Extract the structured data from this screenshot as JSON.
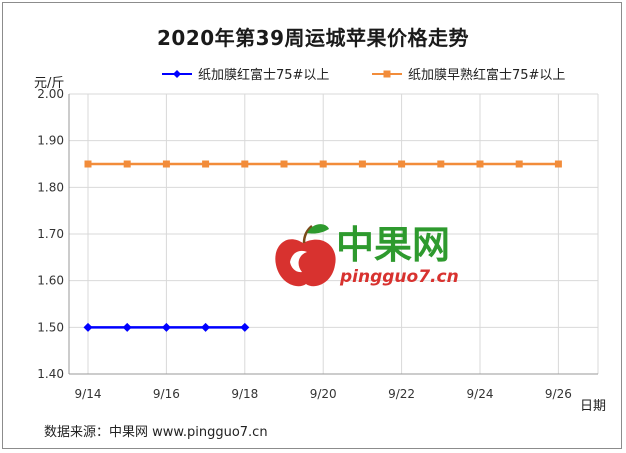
{
  "chart_data": {
    "type": "line",
    "title": "2020年第39周运城苹果价格走势",
    "ylabel": "元/斤",
    "xlabel": "日期",
    "ylim": [
      1.4,
      2.0
    ],
    "yticks": [
      "2.00",
      "1.90",
      "1.80",
      "1.70",
      "1.60",
      "1.50",
      "1.40"
    ],
    "x": [
      "9/14",
      "9/15",
      "9/16",
      "9/17",
      "9/18",
      "9/19",
      "9/20",
      "9/21",
      "9/22",
      "9/23",
      "9/24",
      "9/25",
      "9/26"
    ],
    "xticks": [
      "9/14",
      "9/16",
      "9/18",
      "9/20",
      "9/22",
      "9/24",
      "9/26"
    ],
    "grid": true,
    "legend_position": "top",
    "series": [
      {
        "name": "纸加膜红富士75#以上",
        "color": "#0000ff",
        "marker": "diamond",
        "values": [
          1.5,
          1.5,
          1.5,
          1.5,
          1.5,
          null,
          null,
          null,
          null,
          null,
          null,
          null,
          null
        ]
      },
      {
        "name": "纸加膜早熟红富士75#以上",
        "color": "#f28c3a",
        "marker": "square",
        "values": [
          1.85,
          1.85,
          1.85,
          1.85,
          1.85,
          1.85,
          1.85,
          1.85,
          1.85,
          1.85,
          1.85,
          1.85,
          1.85
        ]
      }
    ]
  },
  "watermark": {
    "cn": "中果网",
    "en": "pingguo7.cn"
  },
  "source_text": "数据来源：中果网 www.pingguo7.cn"
}
